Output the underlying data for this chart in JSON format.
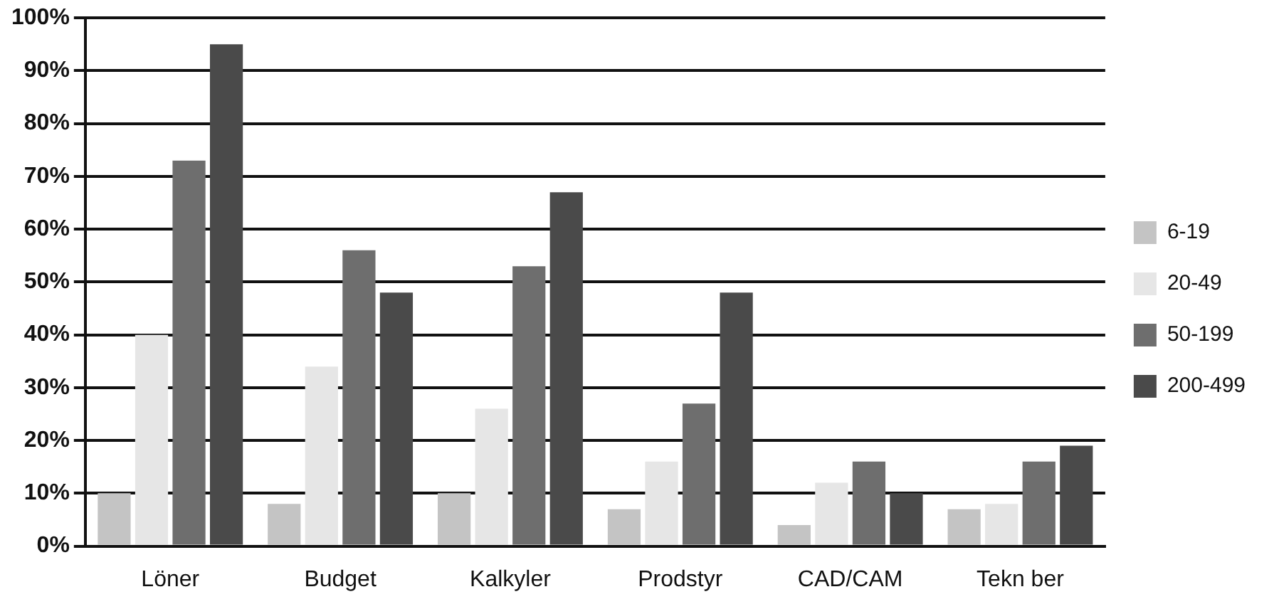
{
  "chart_data": {
    "type": "bar",
    "categories": [
      "Löner",
      "Budget",
      "Kalkyler",
      "Prodstyr",
      "CAD/CAM",
      "Tekn ber"
    ],
    "series": [
      {
        "name": "6-19",
        "color": "#c4c4c4",
        "values": [
          10,
          8,
          10,
          7,
          4,
          7
        ]
      },
      {
        "name": "20-49",
        "color": "#e6e6e6",
        "values": [
          40,
          34,
          26,
          16,
          12,
          8
        ]
      },
      {
        "name": "50-199",
        "color": "#6e6e6e",
        "values": [
          73,
          56,
          53,
          27,
          16,
          16
        ]
      },
      {
        "name": "200-499",
        "color": "#4a4a4a",
        "values": [
          95,
          48,
          67,
          48,
          10,
          19
        ]
      }
    ],
    "ylim": [
      0,
      100
    ],
    "yticks": [
      {
        "value": 0,
        "label": "0%"
      },
      {
        "value": 10,
        "label": "10%"
      },
      {
        "value": 20,
        "label": "20%"
      },
      {
        "value": 30,
        "label": "30%"
      },
      {
        "value": 40,
        "label": "40%"
      },
      {
        "value": 50,
        "label": "50%"
      },
      {
        "value": 60,
        "label": "60%"
      },
      {
        "value": 70,
        "label": "70%"
      },
      {
        "value": 80,
        "label": "80%"
      },
      {
        "value": 90,
        "label": "90%"
      },
      {
        "value": 100,
        "label": "100%"
      }
    ],
    "grid": "y",
    "legend": "right"
  }
}
